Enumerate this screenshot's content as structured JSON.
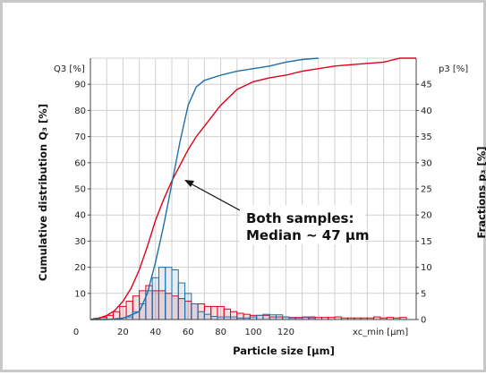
{
  "chart_data": {
    "type": "line",
    "xlabel": "Particle size [µm]",
    "ylabel_left": "Cumulative distribution Q₃ [%]",
    "ylabel_right": "Fractions p₃ [%]",
    "y_left_unit": "Q3 [%]",
    "y_right_unit": "p3 [%]",
    "x_unit_label": "xc_min [µm]",
    "x_ticks": [
      "0",
      "20",
      "40",
      "60",
      "80",
      "100",
      "120"
    ],
    "y_left_ticks": [
      "10",
      "20",
      "30",
      "40",
      "50",
      "60",
      "70",
      "80",
      "90"
    ],
    "y_right_ticks": [
      "0",
      "5",
      "10",
      "15",
      "20",
      "25",
      "30",
      "35",
      "40",
      "45"
    ],
    "xlim": [
      0,
      200
    ],
    "ylim_left": [
      0,
      100
    ],
    "ylim_right": [
      0,
      50
    ],
    "grid": true,
    "annotation": {
      "line1": "Both samples:",
      "line2": "Median ~ 47 µm",
      "points_to": [
        47,
        50
      ]
    },
    "series": [
      {
        "color": "#e0001b",
        "kind": "cumulative",
        "axis": "left",
        "x": [
          0,
          5,
          10,
          15,
          20,
          25,
          30,
          35,
          40,
          45,
          50,
          55,
          60,
          65,
          70,
          75,
          80,
          90,
          100,
          110,
          120,
          130,
          140,
          150,
          160,
          170,
          180,
          190,
          200
        ],
        "y": [
          0,
          0.5,
          1.5,
          3.5,
          7,
          12,
          19,
          28,
          38,
          46,
          53,
          59,
          65,
          70,
          74,
          78,
          82,
          88,
          91,
          92.5,
          93.5,
          95,
          96,
          97,
          97.5,
          98,
          98.5,
          100,
          100
        ]
      },
      {
        "color": "#1f6fa8",
        "kind": "cumulative",
        "axis": "left",
        "x": [
          0,
          10,
          20,
          30,
          35,
          40,
          45,
          50,
          55,
          60,
          65,
          70,
          80,
          90,
          100,
          110,
          120,
          130,
          140
        ],
        "y": [
          0,
          0,
          0.5,
          3,
          10,
          22,
          36,
          52,
          68,
          82,
          89,
          91.5,
          93.5,
          95,
          96,
          97,
          98.5,
          99.5,
          100
        ]
      },
      {
        "color": "#e0001b",
        "kind": "histogram",
        "axis": "right",
        "bin_width": 4,
        "x": [
          4,
          8,
          12,
          16,
          20,
          24,
          28,
          32,
          36,
          40,
          44,
          48,
          52,
          56,
          60,
          64,
          68,
          72,
          76,
          80,
          84,
          88,
          92,
          96,
          100,
          104,
          108,
          112,
          116,
          120,
          124,
          128,
          132,
          136,
          140,
          144,
          148,
          152,
          156,
          160,
          164,
          168,
          172,
          176,
          180,
          184,
          188,
          192
        ],
        "y": [
          0.2,
          0.4,
          0.8,
          1.5,
          2.5,
          3.5,
          4.5,
          5.5,
          6.5,
          5.5,
          5.5,
          5.0,
          4.5,
          4.0,
          3.5,
          3.0,
          3.0,
          2.5,
          2.5,
          2.5,
          2.0,
          1.5,
          1.2,
          1.0,
          0.8,
          0.8,
          0.8,
          0.5,
          0.5,
          0.5,
          0.4,
          0.4,
          0.4,
          0.5,
          0.4,
          0.4,
          0.4,
          0.5,
          0.3,
          0.3,
          0.3,
          0.3,
          0.3,
          0.5,
          0.3,
          0.4,
          0.3,
          0.4
        ]
      },
      {
        "color": "#1f6fa8",
        "kind": "histogram",
        "axis": "right",
        "bin_width": 4,
        "x": [
          24,
          28,
          32,
          36,
          40,
          44,
          48,
          52,
          56,
          60,
          64,
          68,
          72,
          76,
          80,
          84,
          88,
          92,
          96,
          100,
          104,
          108,
          112,
          116,
          120,
          124,
          128,
          132,
          136
        ],
        "y": [
          0.5,
          1.5,
          3,
          5.5,
          8,
          10,
          10,
          9.5,
          7,
          5,
          3,
          1.5,
          1.0,
          0.6,
          0.5,
          0.5,
          0.5,
          0.3,
          0.3,
          0.5,
          0.8,
          1.0,
          0.9,
          0.9,
          0.5,
          0.3,
          0.3,
          0.5,
          0.3
        ]
      }
    ]
  }
}
